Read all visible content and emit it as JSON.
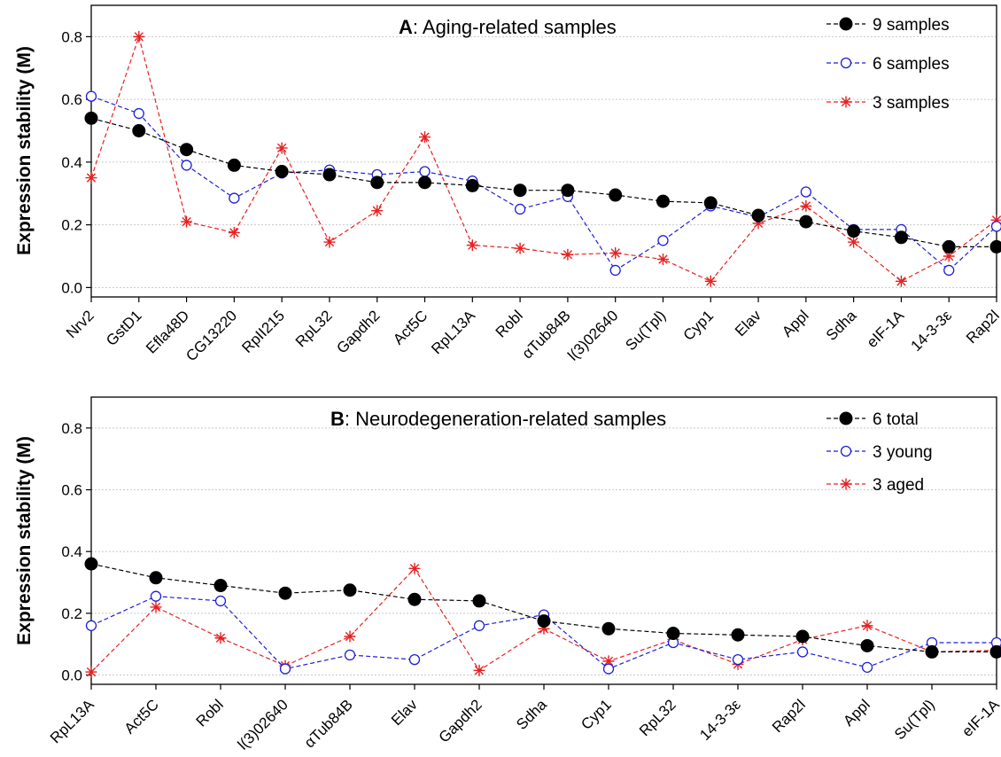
{
  "chart_data": [
    {
      "type": "line",
      "panel": "A",
      "title_letter": "A",
      "title": ": Aging-related samples",
      "ylabel": "Expression stability (M)",
      "ylim": [
        -0.03,
        0.9
      ],
      "yticks": [
        "0.0",
        "0.2",
        "0.4",
        "0.6",
        "0.8"
      ],
      "grid": "horizontal dotted",
      "legend_position": "top-right",
      "categories": [
        "Nrv2",
        "GstD1",
        "Efla48D",
        "CG13220",
        "RpII215",
        "RpL32",
        "Gapdh2",
        "Act5C",
        "RpL13A",
        "Robl",
        "αTub84B",
        "l(3)02640",
        "Su(Tpl)",
        "Cyp1",
        "Elav",
        "Appl",
        "Sdha",
        "eIF-1A",
        "14-3-3ε",
        "Rap2l"
      ],
      "series": [
        {
          "name": "9 samples",
          "color": "#000000",
          "marker": "filled-circle",
          "values": [
            0.54,
            0.5,
            0.44,
            0.39,
            0.37,
            0.36,
            0.335,
            0.335,
            0.325,
            0.31,
            0.31,
            0.295,
            0.275,
            0.27,
            0.23,
            0.21,
            0.18,
            0.16,
            0.13,
            0.13
          ]
        },
        {
          "name": "6 samples",
          "color": "#1f1fd8",
          "marker": "open-circle",
          "values": [
            0.61,
            0.555,
            0.39,
            0.285,
            0.365,
            0.375,
            0.36,
            0.37,
            0.34,
            0.25,
            0.29,
            0.055,
            0.15,
            0.26,
            0.225,
            0.305,
            0.185,
            0.185,
            0.055,
            0.195
          ]
        },
        {
          "name": "3 samples",
          "color": "#e82020",
          "marker": "asterisk",
          "values": [
            0.35,
            0.8,
            0.21,
            0.175,
            0.445,
            0.145,
            0.245,
            0.48,
            0.135,
            0.125,
            0.105,
            0.11,
            0.09,
            0.02,
            0.205,
            0.26,
            0.145,
            0.02,
            0.1,
            0.215
          ]
        }
      ]
    },
    {
      "type": "line",
      "panel": "B",
      "title_letter": "B",
      "title": ": Neurodegeneration-related samples",
      "ylabel": "Expression stability (M)",
      "ylim": [
        -0.03,
        0.9
      ],
      "yticks": [
        "0.0",
        "0.2",
        "0.4",
        "0.6",
        "0.8"
      ],
      "grid": "horizontal dotted",
      "legend_position": "top-right",
      "categories": [
        "RpL13A",
        "Act5C",
        "Robl",
        "l(3)02640",
        "αTub84B",
        "Elav",
        "Gapdh2",
        "Sdha",
        "Cyp1",
        "RpL32",
        "14-3-3ε",
        "Rap2l",
        "Appl",
        "Su(Tpl)",
        "eIF-1A"
      ],
      "series": [
        {
          "name": "6 total",
          "color": "#000000",
          "marker": "filled-circle",
          "values": [
            0.36,
            0.315,
            0.29,
            0.265,
            0.275,
            0.245,
            0.24,
            0.175,
            0.15,
            0.135,
            0.13,
            0.125,
            0.095,
            0.075,
            0.075
          ]
        },
        {
          "name": "3 young",
          "color": "#1f1fd8",
          "marker": "open-circle",
          "values": [
            0.16,
            0.255,
            0.24,
            0.02,
            0.065,
            0.05,
            0.16,
            0.195,
            0.02,
            0.105,
            0.05,
            0.075,
            0.025,
            0.105,
            0.105
          ]
        },
        {
          "name": "3 aged",
          "color": "#e82020",
          "marker": "asterisk",
          "values": [
            0.01,
            0.22,
            0.12,
            0.03,
            0.125,
            0.345,
            0.015,
            0.15,
            0.045,
            0.115,
            0.035,
            0.115,
            0.16,
            0.075,
            0.08
          ]
        }
      ]
    }
  ]
}
